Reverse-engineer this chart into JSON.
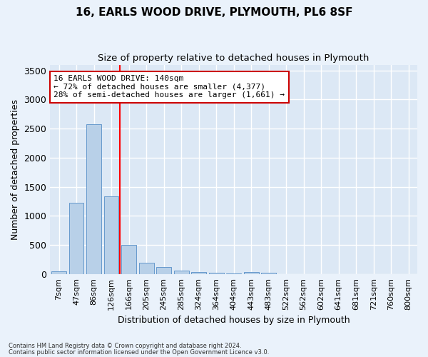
{
  "title1": "16, EARLS WOOD DRIVE, PLYMOUTH, PL6 8SF",
  "title2": "Size of property relative to detached houses in Plymouth",
  "xlabel": "Distribution of detached houses by size in Plymouth",
  "ylabel": "Number of detached properties",
  "categories": [
    "7sqm",
    "47sqm",
    "86sqm",
    "126sqm",
    "166sqm",
    "205sqm",
    "245sqm",
    "285sqm",
    "324sqm",
    "364sqm",
    "404sqm",
    "443sqm",
    "483sqm",
    "522sqm",
    "562sqm",
    "602sqm",
    "641sqm",
    "681sqm",
    "721sqm",
    "760sqm",
    "800sqm"
  ],
  "values": [
    50,
    1230,
    2580,
    1340,
    500,
    190,
    115,
    55,
    30,
    20,
    15,
    30,
    25,
    0,
    0,
    0,
    0,
    0,
    0,
    0,
    0
  ],
  "bar_color": "#b8d0e8",
  "bar_edgecolor": "#6699cc",
  "red_line_x": 3.5,
  "annotation_text": "16 EARLS WOOD DRIVE: 140sqm\n← 72% of detached houses are smaller (4,377)\n28% of semi-detached houses are larger (1,661) →",
  "annotation_box_color": "#ffffff",
  "annotation_box_edgecolor": "#cc0000",
  "ylim": [
    0,
    3600
  ],
  "yticks": [
    0,
    500,
    1000,
    1500,
    2000,
    2500,
    3000,
    3500
  ],
  "background_color": "#dce8f5",
  "grid_color": "#ffffff",
  "fig_bg_color": "#eaf2fb",
  "footer1": "Contains HM Land Registry data © Crown copyright and database right 2024.",
  "footer2": "Contains public sector information licensed under the Open Government Licence v3.0."
}
